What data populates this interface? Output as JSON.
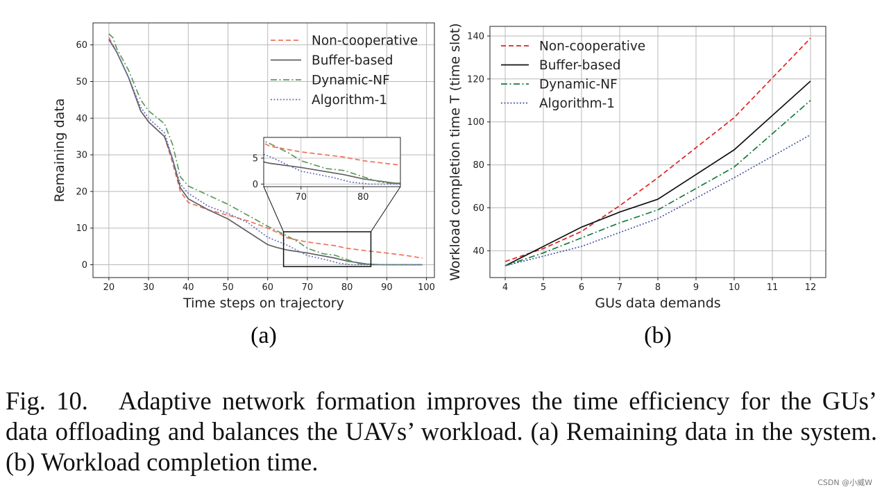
{
  "chart_data": [
    {
      "id": "a",
      "type": "line",
      "xlabel": "Time steps on trajectory",
      "ylabel": "Remaining data",
      "xlim": [
        16,
        102
      ],
      "ylim": [
        -3.5,
        66
      ],
      "xticks": [
        20,
        30,
        40,
        50,
        60,
        70,
        80,
        90,
        100
      ],
      "yticks": [
        0,
        10,
        20,
        30,
        40,
        50,
        60
      ],
      "grid": true,
      "legend_position": "top-right",
      "subfig_label": "(a)",
      "series": [
        {
          "name": "Non-cooperative",
          "color": "#f0705a",
          "style": "dashed",
          "x": [
            20,
            22,
            25,
            28,
            30,
            32,
            34,
            36,
            38,
            40,
            45,
            50,
            55,
            60,
            63,
            65,
            70,
            77,
            80,
            85,
            90,
            95,
            99
          ],
          "y": [
            62,
            58,
            51,
            42,
            39,
            37,
            35,
            28,
            20,
            17,
            15,
            13.5,
            12,
            10,
            8.5,
            7.3,
            6.2,
            5.2,
            4.5,
            3.8,
            3.2,
            2.5,
            1.8
          ]
        },
        {
          "name": "Buffer-based",
          "color": "#606060",
          "style": "solid",
          "x": [
            20,
            22,
            25,
            28,
            30,
            32,
            34,
            36,
            38,
            40,
            45,
            50,
            55,
            60,
            62,
            65,
            70,
            77,
            80,
            85,
            88,
            92,
            99
          ],
          "y": [
            61.5,
            58,
            51,
            42,
            39,
            37,
            35,
            29,
            21,
            18,
            15,
            12.5,
            9,
            5.5,
            4.8,
            4,
            3.2,
            1.8,
            1,
            0.2,
            0.05,
            0,
            0
          ]
        },
        {
          "name": "Dynamic-NF",
          "color": "#5c9a5c",
          "style": "dashdot",
          "x": [
            20,
            21,
            22,
            25,
            28,
            30,
            34,
            36,
            38,
            40,
            45,
            50,
            55,
            60,
            65,
            68,
            70,
            74,
            77,
            80,
            83,
            86,
            99
          ],
          "y": [
            63,
            62,
            59,
            53,
            45,
            42,
            38.5,
            33,
            24,
            21.5,
            19,
            16.5,
            13.5,
            10.5,
            7.8,
            6,
            4.5,
            3,
            2.6,
            1.4,
            0.3,
            0,
            0
          ]
        },
        {
          "name": "Algorithm-1",
          "color": "#6670c0",
          "style": "dotted",
          "x": [
            20,
            22,
            25,
            28,
            30,
            32,
            34,
            36,
            38,
            40,
            45,
            50,
            55,
            60,
            65,
            70,
            75,
            78,
            81,
            85,
            90,
            99
          ],
          "y": [
            61.5,
            58,
            51,
            43,
            40,
            38,
            36,
            29,
            22,
            19.5,
            16,
            14,
            11.5,
            7.5,
            5.3,
            2.5,
            1.3,
            0.4,
            0,
            0,
            0,
            0
          ]
        }
      ],
      "inset": {
        "xlim": [
          64,
          86
        ],
        "ylim": [
          -0.5,
          9
        ],
        "xticks": [
          70,
          80
        ],
        "yticks": [
          0,
          5
        ]
      }
    },
    {
      "id": "b",
      "type": "line",
      "xlabel": "GUs data demands",
      "ylabel": "Workload completion time T (time slot)",
      "xlim": [
        3.6,
        12.4
      ],
      "ylim": [
        27.5,
        144.5
      ],
      "xticks": [
        4,
        5,
        6,
        7,
        8,
        9,
        10,
        11,
        12
      ],
      "yticks": [
        40,
        60,
        80,
        100,
        120,
        140
      ],
      "grid": true,
      "legend_position": "top-left",
      "subfig_label": "(b)",
      "x": [
        4,
        5,
        6,
        7,
        8,
        10,
        12
      ],
      "series": [
        {
          "name": "Non-cooperative",
          "color": "#dd2222",
          "style": "dashed",
          "values": [
            35,
            41,
            49,
            61,
            74,
            102,
            139
          ]
        },
        {
          "name": "Buffer-based",
          "color": "#111111",
          "style": "solid",
          "values": [
            33,
            42,
            51,
            58,
            64,
            87,
            119
          ]
        },
        {
          "name": "Dynamic-NF",
          "color": "#157a3e",
          "style": "dashdot",
          "values": [
            33,
            39,
            46,
            53,
            59,
            79,
            110
          ]
        },
        {
          "name": "Algorithm-1",
          "color": "#4455a6",
          "style": "dotted",
          "values": [
            33,
            37.5,
            42,
            48.5,
            55,
            74,
            94
          ]
        }
      ]
    }
  ],
  "caption": {
    "fig_label": "Fig. 10.",
    "text": "Adaptive network formation improves the time efficiency for the GUs’ data offloading and balances the UAVs’ workload. (a) Remaining data in the system. (b) Workload completion time."
  },
  "watermark": "CSDN @小威W"
}
